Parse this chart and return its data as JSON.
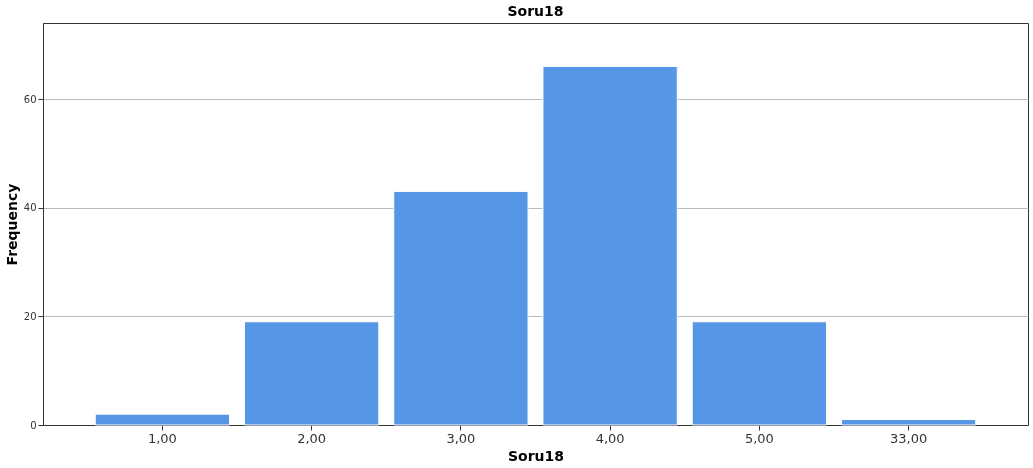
{
  "chart_data": {
    "type": "bar",
    "title": "Soru18",
    "xlabel": "Soru18",
    "ylabel": "Frequency",
    "categories": [
      "1,00",
      "2,00",
      "3,00",
      "4,00",
      "5,00",
      "33,00"
    ],
    "values": [
      2,
      19,
      43,
      66,
      19,
      1
    ],
    "color": "#5596e6",
    "ylim": [
      0,
      74
    ],
    "yticks": [
      0,
      20,
      40,
      60
    ],
    "grid": "y"
  }
}
